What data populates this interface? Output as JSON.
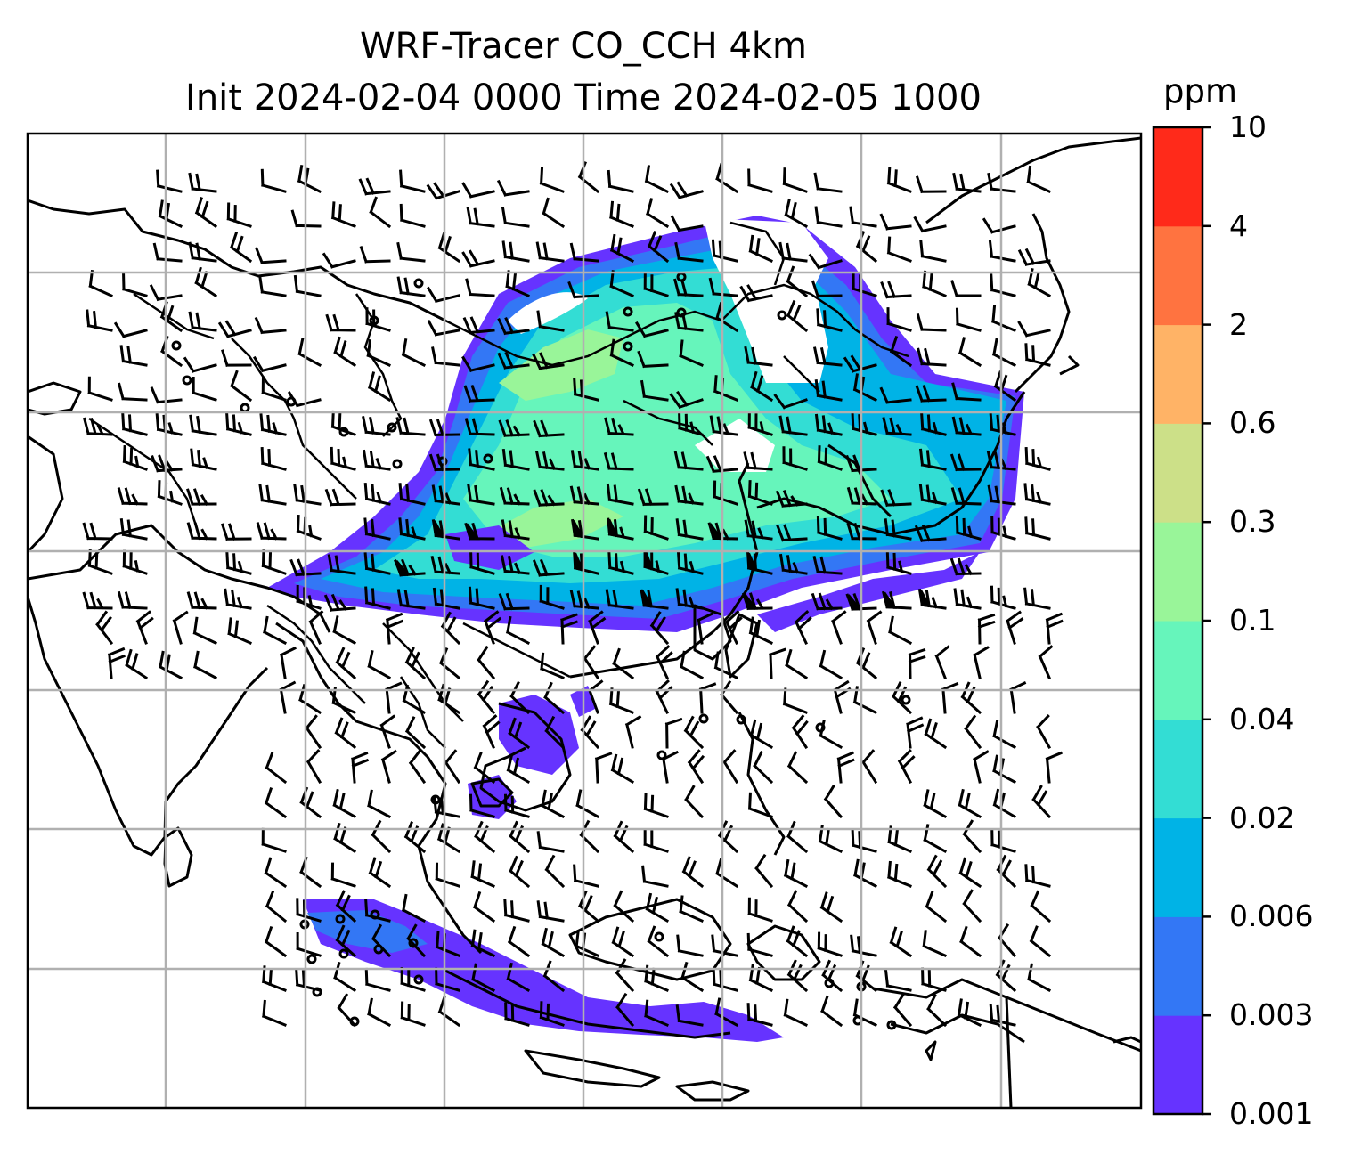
{
  "title_line1": "WRF-Tracer CO_CCH 4km",
  "title_line2": "Init 2024-02-04 0000 Time 2024-02-05 1000",
  "colorbar": {
    "unit": "ppm",
    "tick_labels": [
      "0.001",
      "0.003",
      "0.006",
      "0.02",
      "0.04",
      "0.1",
      "0.3",
      "0.6",
      "2",
      "4",
      "10"
    ],
    "colors": [
      "#6633ff",
      "#3377f5",
      "#00b3e6",
      "#33ddd4",
      "#66f5bb",
      "#99f599",
      "#cce088",
      "#ffb366",
      "#ff7340",
      "#ff2a1a"
    ]
  },
  "map": {
    "field": "CO_CCH tracer concentration (filled contours) with wind barbs",
    "gridlines": true,
    "coastlines": true
  }
}
